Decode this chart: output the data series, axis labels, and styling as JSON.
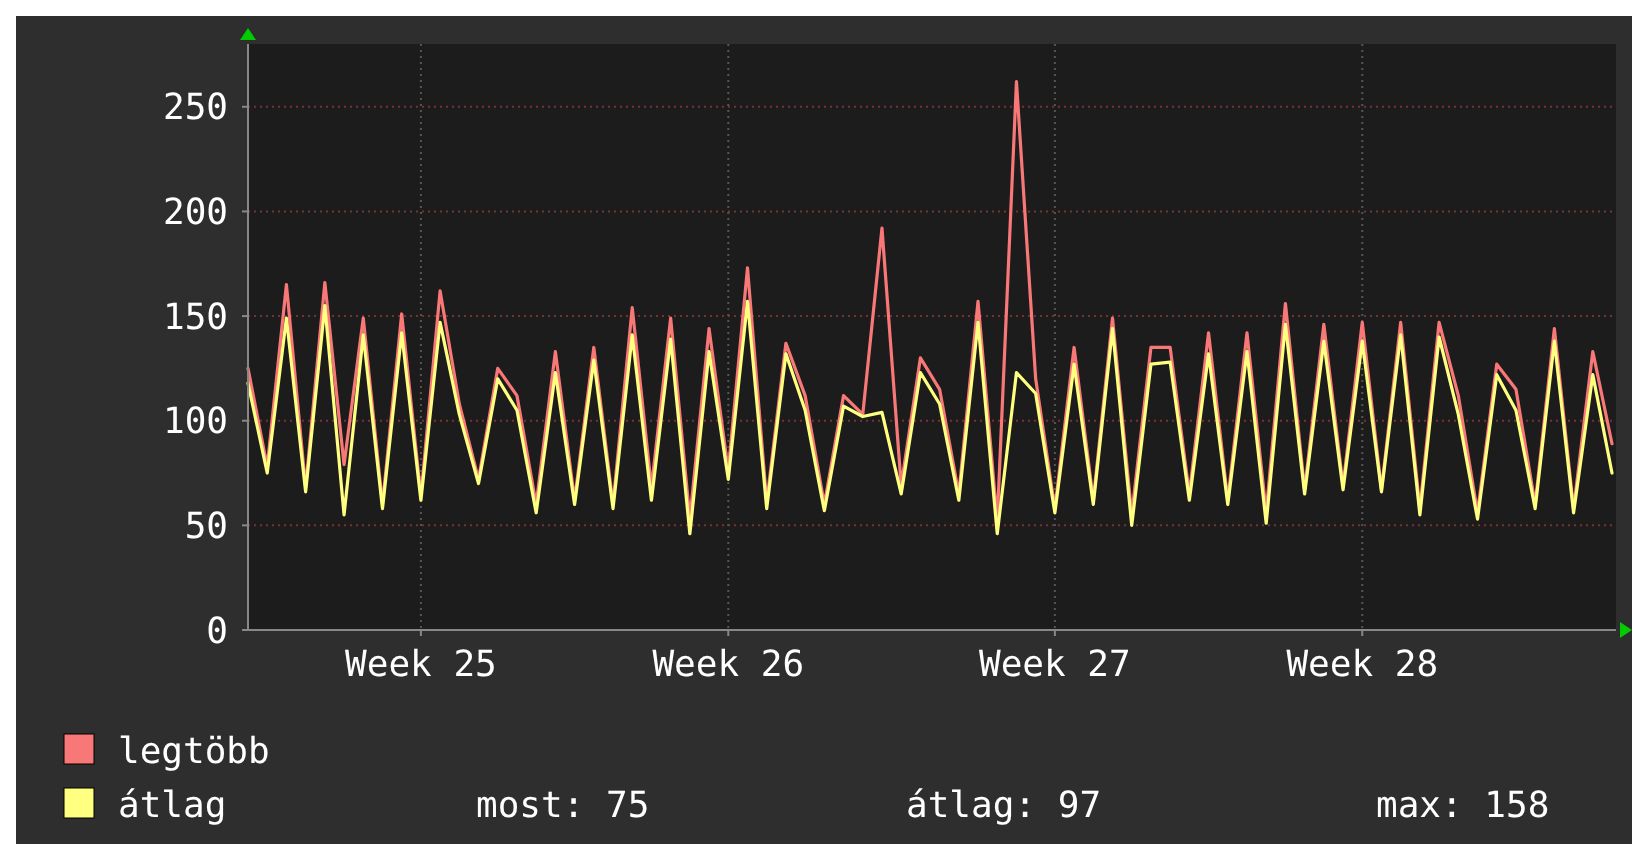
{
  "chart_data": {
    "type": "line",
    "categories": [
      null,
      null,
      null,
      null,
      null,
      null,
      null,
      null,
      null,
      "Week 25",
      null,
      null,
      null,
      null,
      null,
      null,
      null,
      null,
      null,
      null,
      null,
      null,
      null,
      null,
      null,
      "Week 26",
      null,
      null,
      null,
      null,
      null,
      null,
      null,
      null,
      null,
      null,
      null,
      null,
      null,
      null,
      null,
      null,
      "Week 27",
      null,
      null,
      null,
      null,
      null,
      null,
      null,
      null,
      null,
      null,
      null,
      null,
      null,
      null,
      null,
      "Week 28",
      null,
      null,
      null,
      null,
      null,
      null,
      null,
      null,
      null,
      null,
      null,
      null,
      null
    ],
    "series": [
      {
        "name": "legtöbb",
        "color": "#f87878",
        "values": [
          125,
          78,
          165,
          68,
          166,
          79,
          149,
          60,
          151,
          64,
          162,
          108,
          72,
          125,
          112,
          60,
          133,
          62,
          135,
          60,
          154,
          68,
          149,
          53,
          144,
          76,
          173,
          61,
          137,
          112,
          60,
          112,
          103,
          192,
          69,
          130,
          115,
          65,
          157,
          52,
          262,
          120,
          58,
          135,
          62,
          149,
          55,
          135,
          135,
          65,
          142,
          62,
          142,
          56,
          156,
          67,
          146,
          69,
          147,
          67,
          147,
          58,
          147,
          112,
          56,
          127,
          115,
          60,
          144,
          58,
          133,
          89
        ]
      },
      {
        "name": "átlag",
        "color": "#ffff80",
        "values": [
          118,
          75,
          149,
          66,
          155,
          55,
          141,
          58,
          142,
          62,
          147,
          103,
          70,
          120,
          105,
          56,
          123,
          60,
          129,
          58,
          141,
          62,
          139,
          46,
          133,
          72,
          157,
          58,
          132,
          105,
          57,
          107,
          102,
          104,
          65,
          123,
          108,
          62,
          147,
          46,
          123,
          113,
          56,
          127,
          60,
          144,
          50,
          127,
          128,
          62,
          132,
          60,
          133,
          51,
          146,
          65,
          138,
          67,
          138,
          66,
          141,
          55,
          140,
          103,
          53,
          122,
          105,
          58,
          138,
          56,
          122,
          75
        ]
      }
    ],
    "ylim": [
      0,
      280
    ],
    "yticks": [
      0,
      50,
      100,
      150,
      200,
      250
    ],
    "grid": true,
    "legend": "bottom",
    "line_style": "solid",
    "marker": "none",
    "annotations": [
      "most: 75",
      "átlag: 97",
      "max: 158"
    ]
  }
}
